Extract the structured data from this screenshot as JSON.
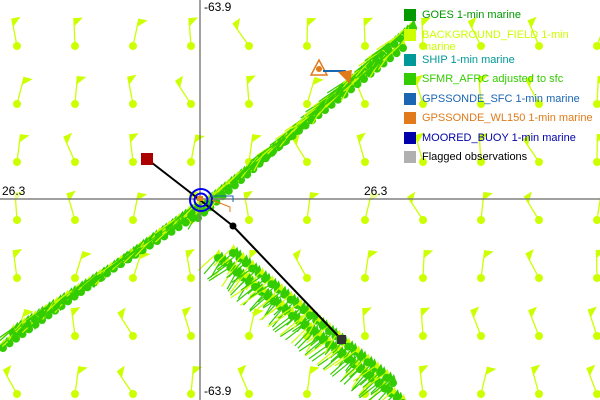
{
  "axes": {
    "top_label": "-63.9",
    "bottom_label": "-63.9",
    "left_label": "26.3",
    "right_label": "26.3"
  },
  "legend": [
    {
      "label": "GOES 1-min marine",
      "color": "#009900"
    },
    {
      "label": "BACKGROUND_FIELD 1-min marine",
      "color": "#ccff00"
    },
    {
      "label": "SHIP 1-min marine",
      "color": "#009999"
    },
    {
      "label": "SFMR_AFRC adjusted to sfc",
      "color": "#33cc00"
    },
    {
      "label": "GPSSONDE_SFC 1-min marine",
      "color": "#1a66b3"
    },
    {
      "label": "GPSSONDE_WL150 1-min marine",
      "color": "#e07a1a"
    },
    {
      "label": "MOORED_BUOY 1-min marine",
      "color": "#0000aa"
    },
    {
      "label": "Flagged observations",
      "color": "#b0b0b0"
    }
  ],
  "colors": {
    "background_field": "#ccff00",
    "sfmr": "#33cc00",
    "track": "#000000",
    "start_marker": "#aa0000",
    "center_marker": "#0000ee",
    "grid": "#808080"
  }
}
